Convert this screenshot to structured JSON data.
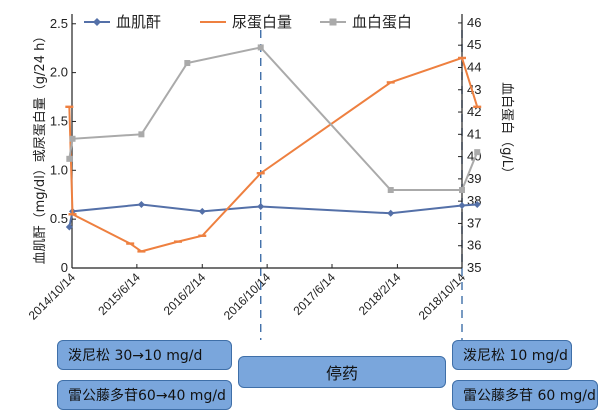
{
  "chart_data": {
    "type": "line",
    "x_ticks": [
      "2014/10/14",
      "2015/6/14",
      "2016/2/14",
      "2016/10/14",
      "2017/6/14",
      "2018/2/14",
      "2018/10/14"
    ],
    "y_left_label": "血肌酐（mg/dl）或尿蛋白量（g/24 h）",
    "y_right_label": "血白蛋白（g/L）",
    "y_left_range": [
      0,
      2.6
    ],
    "y_left_ticks": [
      "0",
      "0.5",
      "1.0",
      "1.5",
      "2.0",
      "2.5"
    ],
    "y_right_range": [
      35,
      46.4
    ],
    "y_right_ticks": [
      "35",
      "36",
      "37",
      "38",
      "39",
      "40",
      "41",
      "42",
      "43",
      "44",
      "45",
      "46"
    ],
    "legend_position": "top",
    "series": [
      {
        "name": "血肌酐",
        "axis": "left",
        "color": "#5470a8",
        "marker": "diamond",
        "points": [
          {
            "x": "2014-10-04",
            "y": 0.42
          },
          {
            "x": "2014-10-16",
            "y": 0.58
          },
          {
            "x": "2015-07-01",
            "y": 0.65
          },
          {
            "x": "2016-02-14",
            "y": 0.58
          },
          {
            "x": "2016-09-20",
            "y": 0.63
          },
          {
            "x": "2018-01-20",
            "y": 0.56
          },
          {
            "x": "2018-10-14",
            "y": 0.64
          },
          {
            "x": "2018-12-10",
            "y": 0.65
          }
        ]
      },
      {
        "name": "尿蛋白量",
        "axis": "left",
        "color": "#ee8040",
        "marker": "dash",
        "points": [
          {
            "x": "2014-10-04",
            "y": 1.65
          },
          {
            "x": "2014-10-16",
            "y": 0.55
          },
          {
            "x": "2015-05-20",
            "y": 0.25
          },
          {
            "x": "2015-07-01",
            "y": 0.17
          },
          {
            "x": "2015-11-15",
            "y": 0.27
          },
          {
            "x": "2016-02-14",
            "y": 0.33
          },
          {
            "x": "2016-09-20",
            "y": 0.97
          },
          {
            "x": "2018-01-20",
            "y": 1.9
          },
          {
            "x": "2018-10-14",
            "y": 2.15
          },
          {
            "x": "2018-12-10",
            "y": 1.65
          }
        ]
      },
      {
        "name": "血白蛋白",
        "axis": "right",
        "color": "#aaaaaa",
        "marker": "square",
        "points": [
          {
            "x": "2014-10-04",
            "y": 39.9
          },
          {
            "x": "2014-10-16",
            "y": 40.8
          },
          {
            "x": "2015-07-01",
            "y": 41.0
          },
          {
            "x": "2015-12-20",
            "y": 44.2
          },
          {
            "x": "2016-09-20",
            "y": 44.9
          },
          {
            "x": "2018-01-20",
            "y": 38.5
          },
          {
            "x": "2018-10-14",
            "y": 38.5
          },
          {
            "x": "2018-12-10",
            "y": 40.2
          }
        ]
      }
    ],
    "reference_lines": [
      {
        "x": "2016-09-20",
        "style": "dashed",
        "color": "#3f6fa8"
      },
      {
        "x": "2018-10-14",
        "style": "dashed",
        "color": "#3f6fa8"
      }
    ]
  },
  "treatments": {
    "prednisone_1": "泼尼松 30→10 mg/d",
    "tripterygium_1": "雷公藤多苷60→40 mg/d",
    "stop": "停药",
    "prednisone_2": "泼尼松 10 mg/d",
    "tripterygium_2": "雷公藤多苷 60 mg/d"
  }
}
